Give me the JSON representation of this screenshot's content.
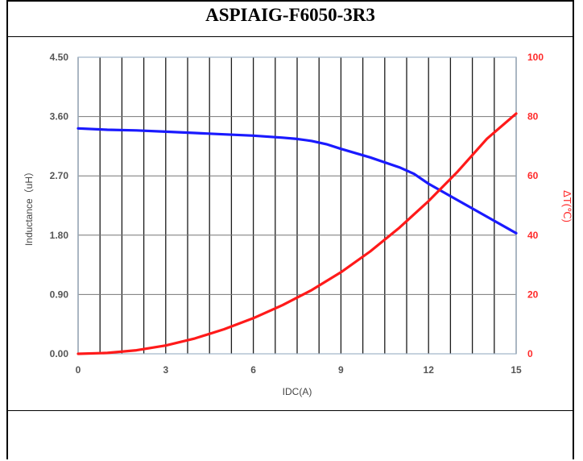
{
  "title": "ASPIAIG-F6050-3R3",
  "colors": {
    "inductance": "#1a1aff",
    "temperature": "#ff1a1a",
    "grid": "#1a1a1a",
    "plot_border": "#9fb3c8"
  },
  "chart_data": {
    "type": "line",
    "title": "ASPIAIG-F6050-3R3",
    "xlabel": "IDC(A)",
    "ylabel": "Inductance（uH）",
    "y2label": "ΔT(℃)",
    "xlim": [
      0,
      15
    ],
    "ylim": [
      0,
      4.5
    ],
    "y2lim": [
      0,
      100
    ],
    "x_ticks": [
      "0",
      "3",
      "6",
      "9",
      "12",
      "15"
    ],
    "y_ticks": [
      "0.00",
      "0.90",
      "1.80",
      "2.70",
      "3.60",
      "4.50"
    ],
    "y2_ticks": [
      "0",
      "20",
      "40",
      "60",
      "80",
      "100"
    ],
    "grid": true,
    "series": [
      {
        "name": "Inductance",
        "axis": "left",
        "x": [
          0,
          1,
          2,
          3,
          4,
          5,
          6,
          7,
          7.5,
          8,
          8.5,
          9,
          10,
          11,
          11.5,
          12,
          13,
          14,
          15
        ],
        "y": [
          3.42,
          3.4,
          3.39,
          3.37,
          3.35,
          3.33,
          3.31,
          3.28,
          3.26,
          3.23,
          3.18,
          3.11,
          2.98,
          2.83,
          2.73,
          2.58,
          2.33,
          2.08,
          1.83
        ]
      },
      {
        "name": "ΔT",
        "axis": "right",
        "x": [
          0,
          1,
          2,
          3,
          4,
          5,
          6,
          7,
          8,
          9,
          10,
          11,
          12,
          13,
          14,
          15
        ],
        "y": [
          0,
          0.3,
          1.2,
          2.8,
          5.2,
          8.3,
          12.0,
          16.4,
          21.5,
          27.5,
          34.5,
          42.5,
          51.5,
          61.5,
          72.5,
          81
        ]
      }
    ]
  }
}
